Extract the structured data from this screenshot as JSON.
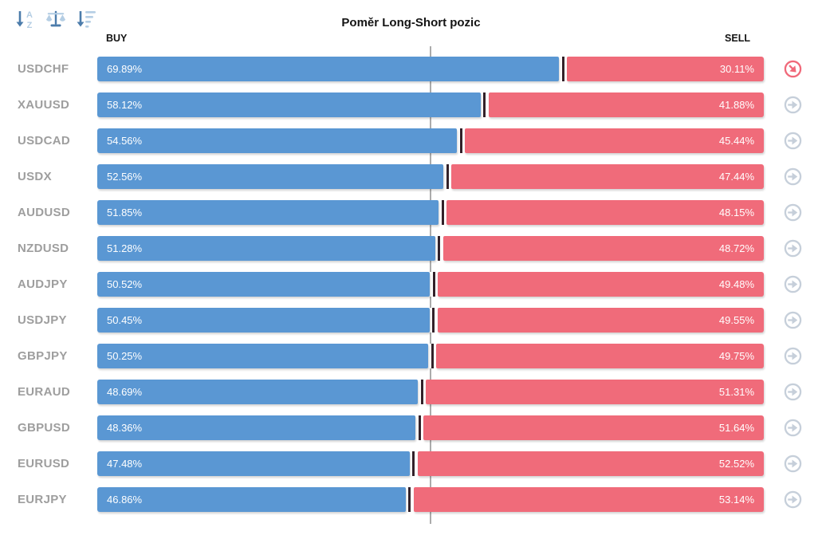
{
  "title": "Poměr Long-Short pozic",
  "columns": {
    "buy": "BUY",
    "sell": "SELL"
  },
  "toolbar": {
    "icons": [
      "sort-alpha-down-icon",
      "balance-scale-icon",
      "sort-amount-down-icon"
    ]
  },
  "colors": {
    "buy": "#5A97D3",
    "sell": "#F06B7A",
    "label": "#9E9E9E",
    "divider": "#332129",
    "midline": "#ABABAB",
    "icon_default": "#C6CFDA",
    "icon_alert": "#F0697A",
    "toolbar_dark": "#4C7CAB",
    "toolbar_light": "#B5CEE4"
  },
  "rows": [
    {
      "symbol": "USDCHF",
      "buy": 69.89,
      "sell": 30.11,
      "buy_label": "69.89%",
      "sell_label": "30.11%",
      "trend": "down-right"
    },
    {
      "symbol": "XAUUSD",
      "buy": 58.12,
      "sell": 41.88,
      "buy_label": "58.12%",
      "sell_label": "41.88%",
      "trend": "right"
    },
    {
      "symbol": "USDCAD",
      "buy": 54.56,
      "sell": 45.44,
      "buy_label": "54.56%",
      "sell_label": "45.44%",
      "trend": "right"
    },
    {
      "symbol": "USDX",
      "buy": 52.56,
      "sell": 47.44,
      "buy_label": "52.56%",
      "sell_label": "47.44%",
      "trend": "right"
    },
    {
      "symbol": "AUDUSD",
      "buy": 51.85,
      "sell": 48.15,
      "buy_label": "51.85%",
      "sell_label": "48.15%",
      "trend": "right"
    },
    {
      "symbol": "NZDUSD",
      "buy": 51.28,
      "sell": 48.72,
      "buy_label": "51.28%",
      "sell_label": "48.72%",
      "trend": "right"
    },
    {
      "symbol": "AUDJPY",
      "buy": 50.52,
      "sell": 49.48,
      "buy_label": "50.52%",
      "sell_label": "49.48%",
      "trend": "right"
    },
    {
      "symbol": "USDJPY",
      "buy": 50.45,
      "sell": 49.55,
      "buy_label": "50.45%",
      "sell_label": "49.55%",
      "trend": "right"
    },
    {
      "symbol": "GBPJPY",
      "buy": 50.25,
      "sell": 49.75,
      "buy_label": "50.25%",
      "sell_label": "49.75%",
      "trend": "right"
    },
    {
      "symbol": "EURAUD",
      "buy": 48.69,
      "sell": 51.31,
      "buy_label": "48.69%",
      "sell_label": "51.31%",
      "trend": "right"
    },
    {
      "symbol": "GBPUSD",
      "buy": 48.36,
      "sell": 51.64,
      "buy_label": "48.36%",
      "sell_label": "51.64%",
      "trend": "right"
    },
    {
      "symbol": "EURUSD",
      "buy": 47.48,
      "sell": 52.52,
      "buy_label": "47.48%",
      "sell_label": "52.52%",
      "trend": "right"
    },
    {
      "symbol": "EURJPY",
      "buy": 46.86,
      "sell": 53.14,
      "buy_label": "46.86%",
      "sell_label": "53.14%",
      "trend": "right"
    }
  ],
  "chart_data": {
    "type": "bar",
    "orientation": "horizontal",
    "stacked": true,
    "title": "Poměr Long-Short pozic",
    "xlabel": "",
    "ylabel": "",
    "xlim": [
      0,
      100
    ],
    "midline_at": 50,
    "grid": false,
    "legend_position": "top (BUY left, SELL right)",
    "categories": [
      "USDCHF",
      "XAUUSD",
      "USDCAD",
      "USDX",
      "AUDUSD",
      "NZDUSD",
      "AUDJPY",
      "USDJPY",
      "GBPJPY",
      "EURAUD",
      "GBPUSD",
      "EURUSD",
      "EURJPY"
    ],
    "series": [
      {
        "name": "BUY",
        "color": "#5A97D3",
        "values": [
          69.89,
          58.12,
          54.56,
          52.56,
          51.85,
          51.28,
          50.52,
          50.45,
          50.25,
          48.69,
          48.36,
          47.48,
          46.86
        ]
      },
      {
        "name": "SELL",
        "color": "#F06B7A",
        "values": [
          30.11,
          41.88,
          45.44,
          47.44,
          48.15,
          48.72,
          49.48,
          49.55,
          49.75,
          51.31,
          51.64,
          52.52,
          53.14
        ]
      }
    ]
  }
}
